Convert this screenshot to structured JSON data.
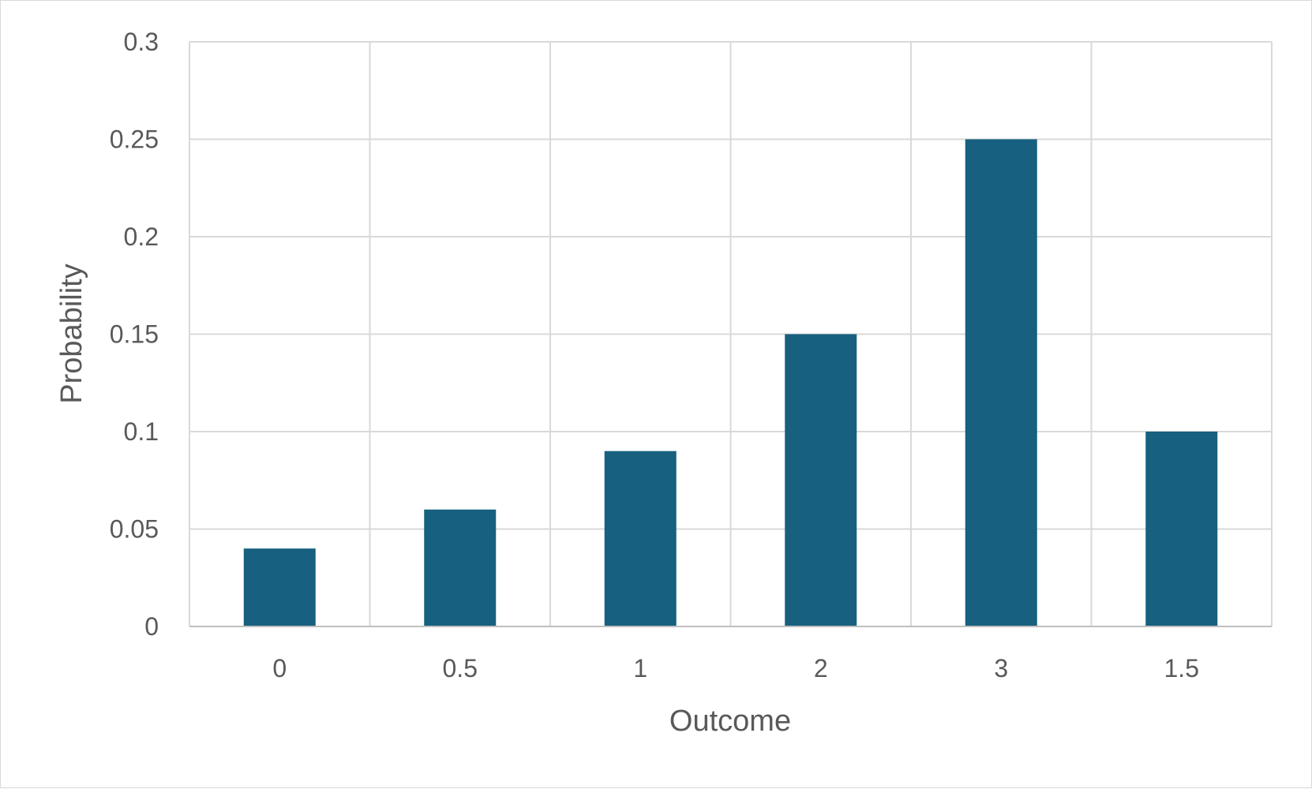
{
  "chart_data": {
    "type": "bar",
    "title": "",
    "xlabel": "Outcome",
    "ylabel": "Probability",
    "categories": [
      "0",
      "0.5",
      "1",
      "2",
      "3",
      "1.5"
    ],
    "values": [
      0.04,
      0.06,
      0.09,
      0.15,
      0.25,
      0.1
    ],
    "ylim": [
      0,
      0.3
    ],
    "yticks": [
      "0",
      "0.05",
      "0.1",
      "0.15",
      "0.2",
      "0.25",
      "0.3"
    ],
    "grid": true,
    "legend": "none",
    "bar_color": "#17607f",
    "grid_color": "#d9d9d9",
    "text_color": "#595959"
  }
}
